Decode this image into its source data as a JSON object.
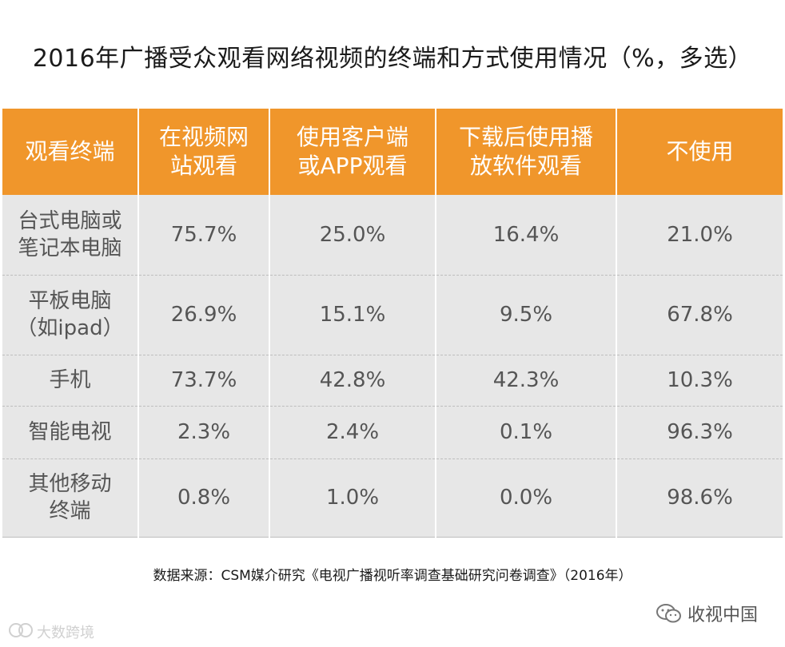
{
  "title": "2016年广播受众观看网络视频的终端和方式使用情况（%，多选）",
  "chart_data": {
    "type": "table",
    "columns": [
      "观看终端",
      "在视频网站观看",
      "使用客户端或APP观看",
      "下载后使用播放软件观看",
      "不使用"
    ],
    "column_lines": [
      [
        "观看终端"
      ],
      [
        "在视频网",
        "站观看"
      ],
      [
        "使用客户端",
        "或APP观看"
      ],
      [
        "下载后使用播",
        "放软件观看"
      ],
      [
        "不使用"
      ]
    ],
    "rows": [
      {
        "name_lines": [
          "台式电脑或",
          "笔记本电脑"
        ],
        "values": [
          "75.7%",
          "25.0%",
          "16.4%",
          "21.0%"
        ]
      },
      {
        "name_lines": [
          "平板电脑",
          "（如ipad）"
        ],
        "values": [
          "26.9%",
          "15.1%",
          "9.5%",
          "67.8%"
        ]
      },
      {
        "name_lines": [
          "手机"
        ],
        "values": [
          "73.7%",
          "42.8%",
          "42.3%",
          "10.3%"
        ]
      },
      {
        "name_lines": [
          "智能电视"
        ],
        "values": [
          "2.3%",
          "2.4%",
          "0.1%",
          "96.3%"
        ]
      },
      {
        "name_lines": [
          "其他移动",
          "终端"
        ],
        "values": [
          "0.8%",
          "1.0%",
          "0.0%",
          "98.6%"
        ]
      }
    ]
  },
  "source": "数据来源：CSM媒介研究《电视广播视听率调查基础研究问卷调查》（2016年）",
  "brand": {
    "wechat_name": "收视中国",
    "watermark": "大数跨境"
  },
  "colors": {
    "header_bg": "#f0962b",
    "cell_bg": "#e7e7e7",
    "text": "#555555"
  }
}
